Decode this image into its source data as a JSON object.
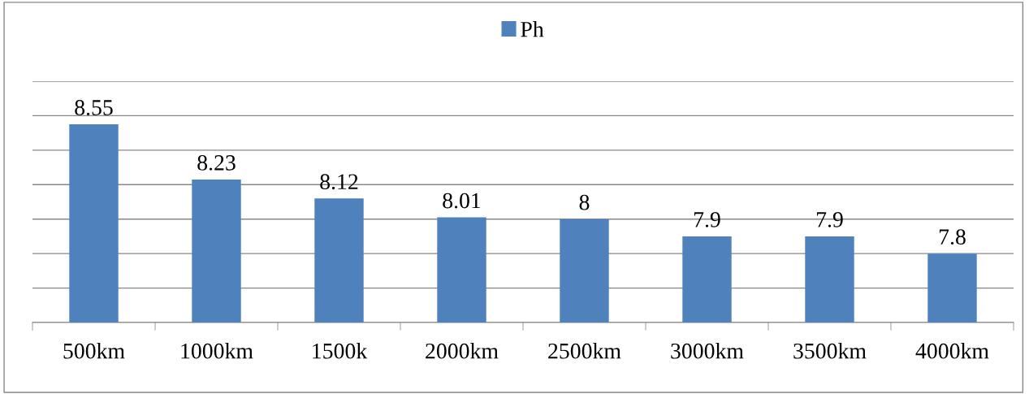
{
  "chart_data": {
    "type": "bar",
    "categories": [
      "500km",
      "1000km",
      "1500k",
      "2000km",
      "2500km",
      "3000km",
      "3500km",
      "4000km"
    ],
    "series": [
      {
        "name": "Ph",
        "color": "#4f81bd",
        "values": [
          8.55,
          8.23,
          8.12,
          8.01,
          8,
          7.9,
          7.9,
          7.8
        ]
      }
    ],
    "ylim": [
      7.4,
      8.8
    ],
    "yticks": [
      {
        "value": 7.4,
        "label": null
      },
      {
        "value": 7.6,
        "label": null
      },
      {
        "value": 7.8,
        "label": null
      },
      {
        "value": 8.0,
        "label": null
      },
      {
        "value": 8.2,
        "label": null
      },
      {
        "value": 8.4,
        "label": null
      },
      {
        "value": 8.6,
        "label": null
      },
      {
        "value": 8.8,
        "label": null
      }
    ],
    "tick_labels": "x",
    "grid": "y",
    "legend": "top",
    "data_labels": true
  }
}
